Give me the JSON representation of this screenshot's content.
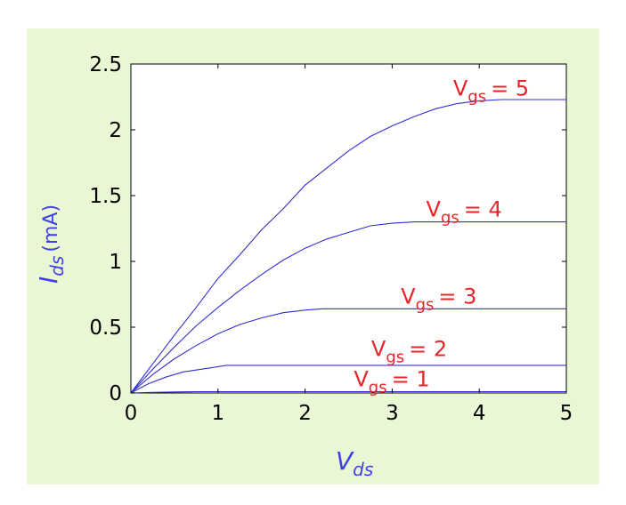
{
  "chart_data": {
    "type": "line",
    "xlabel": {
      "main": "V",
      "sub": "ds"
    },
    "ylabel": {
      "main": "I",
      "sub": "ds",
      "unit": "(mA)"
    },
    "xlim": [
      0,
      5
    ],
    "ylim": [
      0,
      2.5
    ],
    "xticks": [
      "0",
      "1",
      "2",
      "3",
      "4",
      "5"
    ],
    "yticks": [
      "0",
      "0.5",
      "1",
      "1.5",
      "2",
      "2.5"
    ],
    "grid": false,
    "colors": {
      "background": "#eaf7d4",
      "plot": "#ffffff",
      "line": "#3030d0",
      "curve_label": "#e8262a",
      "axis_label": "#4040e8"
    },
    "series": [
      {
        "label_main": "V",
        "label_sub": "gs",
        "label_value": "= 1",
        "x": [
          0,
          0.2,
          0.4,
          0.6,
          0.8,
          1,
          1.5,
          2,
          3,
          4,
          5
        ],
        "y": [
          0,
          0.004,
          0.007,
          0.009,
          0.01,
          0.01,
          0.01,
          0.01,
          0.01,
          0.01,
          0.01
        ]
      },
      {
        "label_main": "V",
        "label_sub": "gs",
        "label_value": "= 2",
        "x": [
          0,
          0.2,
          0.4,
          0.6,
          0.8,
          1,
          1.1,
          1.5,
          2,
          3,
          4,
          5
        ],
        "y": [
          0,
          0.07,
          0.12,
          0.16,
          0.18,
          0.2,
          0.21,
          0.21,
          0.21,
          0.21,
          0.21,
          0.21
        ]
      },
      {
        "label_main": "V",
        "label_sub": "gs",
        "label_value": "= 3",
        "x": [
          0,
          0.25,
          0.5,
          0.75,
          1,
          1.25,
          1.5,
          1.75,
          2,
          2.2,
          3,
          4,
          5
        ],
        "y": [
          0,
          0.14,
          0.26,
          0.36,
          0.45,
          0.52,
          0.57,
          0.61,
          0.63,
          0.64,
          0.64,
          0.64,
          0.64
        ]
      },
      {
        "label_main": "V",
        "label_sub": "gs",
        "label_value": "= 4",
        "x": [
          0,
          0.25,
          0.5,
          0.75,
          1,
          1.25,
          1.5,
          1.75,
          2,
          2.25,
          2.5,
          2.75,
          3,
          3.25,
          4,
          5
        ],
        "y": [
          0,
          0.18,
          0.35,
          0.51,
          0.65,
          0.78,
          0.9,
          1.01,
          1.1,
          1.17,
          1.22,
          1.27,
          1.29,
          1.3,
          1.3,
          1.3
        ]
      },
      {
        "label_main": "V",
        "label_sub": "gs",
        "label_value": "= 5",
        "x": [
          0,
          0.25,
          0.5,
          0.75,
          1,
          1.25,
          1.5,
          1.75,
          2,
          2.25,
          2.5,
          2.75,
          3,
          3.25,
          3.5,
          3.75,
          4,
          4.25,
          4.5,
          5
        ],
        "y": [
          0,
          0.22,
          0.44,
          0.65,
          0.87,
          1.05,
          1.24,
          1.4,
          1.58,
          1.71,
          1.84,
          1.95,
          2.03,
          2.1,
          2.16,
          2.2,
          2.22,
          2.23,
          2.23,
          2.23
        ]
      }
    ]
  }
}
